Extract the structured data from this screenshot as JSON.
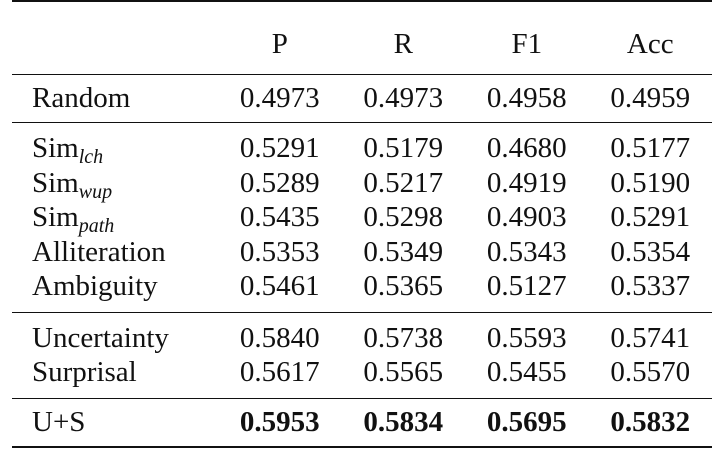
{
  "table": {
    "columns": [
      "",
      "P",
      "R",
      "F1",
      "Acc"
    ],
    "groups": [
      {
        "rows": [
          {
            "label": "Random",
            "sub": "",
            "values": [
              "0.4973",
              "0.4973",
              "0.4958",
              "0.4959"
            ],
            "bold": false
          }
        ]
      },
      {
        "rows": [
          {
            "label": "Sim",
            "sub": "lch",
            "values": [
              "0.5291",
              "0.5179",
              "0.4680",
              "0.5177"
            ],
            "bold": false
          },
          {
            "label": "Sim",
            "sub": "wup",
            "values": [
              "0.5289",
              "0.5217",
              "0.4919",
              "0.5190"
            ],
            "bold": false
          },
          {
            "label": "Sim",
            "sub": "path",
            "values": [
              "0.5435",
              "0.5298",
              "0.4903",
              "0.5291"
            ],
            "bold": false
          },
          {
            "label": "Alliteration",
            "sub": "",
            "values": [
              "0.5353",
              "0.5349",
              "0.5343",
              "0.5354"
            ],
            "bold": false
          },
          {
            "label": "Ambiguity",
            "sub": "",
            "values": [
              "0.5461",
              "0.5365",
              "0.5127",
              "0.5337"
            ],
            "bold": false
          }
        ]
      },
      {
        "rows": [
          {
            "label": "Uncertainty",
            "sub": "",
            "values": [
              "0.5840",
              "0.5738",
              "0.5593",
              "0.5741"
            ],
            "bold": false
          },
          {
            "label": "Surprisal",
            "sub": "",
            "values": [
              "0.5617",
              "0.5565",
              "0.5455",
              "0.5570"
            ],
            "bold": false
          }
        ]
      },
      {
        "rows": [
          {
            "label": "U+S",
            "sub": "",
            "values": [
              "0.5953",
              "0.5834",
              "0.5695",
              "0.5832"
            ],
            "bold": true
          }
        ]
      }
    ]
  }
}
